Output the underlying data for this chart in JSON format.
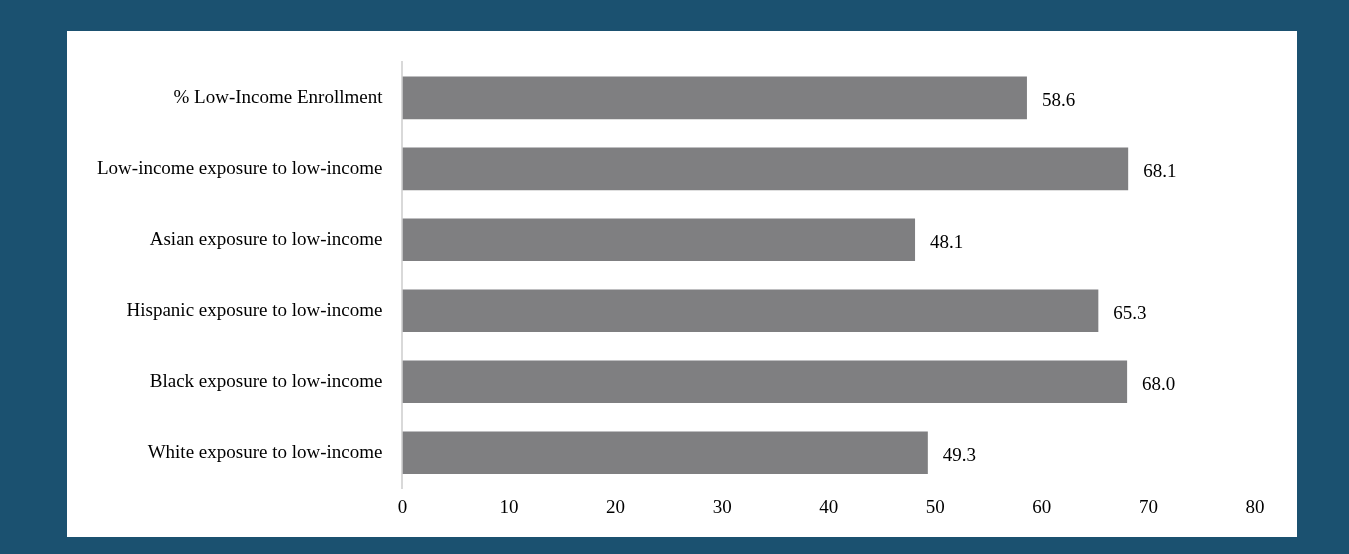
{
  "chart_data": {
    "type": "bar",
    "orientation": "horizontal",
    "categories": [
      "% Low-Income Enrollment",
      "Low-income exposure to low-income",
      "Asian exposure to low-income",
      "Hispanic exposure to low-income",
      "Black exposure to low-income",
      "White exposure to low-income"
    ],
    "values": [
      58.6,
      68.1,
      48.1,
      65.3,
      68.0,
      49.3
    ],
    "value_labels": [
      "58.6",
      "68.1",
      "48.1",
      "65.3",
      "68.0",
      "49.3"
    ],
    "color": "#7f7f81",
    "xlim": [
      0,
      80
    ],
    "xticks": [
      0,
      10,
      20,
      30,
      40,
      50,
      60,
      70,
      80
    ],
    "grid": false,
    "legend": false
  }
}
